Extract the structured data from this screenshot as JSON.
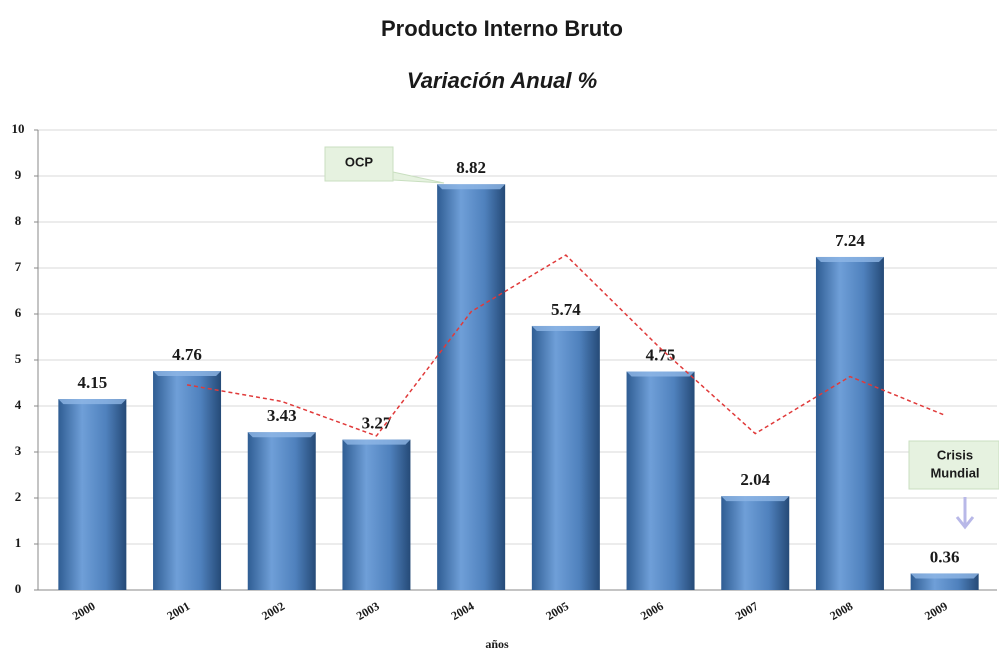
{
  "chart_data": {
    "type": "bar",
    "title": "Producto Interno Bruto",
    "subtitle": "Variación Anual %",
    "categories": [
      "2000",
      "2001",
      "2002",
      "2003",
      "2004",
      "2005",
      "2006",
      "2007",
      "2008",
      "2009"
    ],
    "values": [
      4.15,
      4.76,
      3.43,
      3.27,
      8.82,
      5.74,
      4.75,
      2.04,
      7.24,
      0.36
    ],
    "color": "#4f81bd",
    "trend": {
      "values": [
        null,
        4.46,
        4.1,
        3.35,
        6.05,
        7.28,
        5.25,
        3.4,
        4.64,
        3.8
      ],
      "color": "#e03a3a"
    },
    "ylim": [
      0,
      10
    ],
    "yticks": [
      0,
      1,
      2,
      3,
      4,
      5,
      6,
      7,
      8,
      9,
      10
    ],
    "grid": true,
    "xlabel": "años",
    "annotations": [
      {
        "text": "OCP"
      },
      {
        "lines": [
          "Crisis",
          "Mundial"
        ]
      }
    ]
  }
}
